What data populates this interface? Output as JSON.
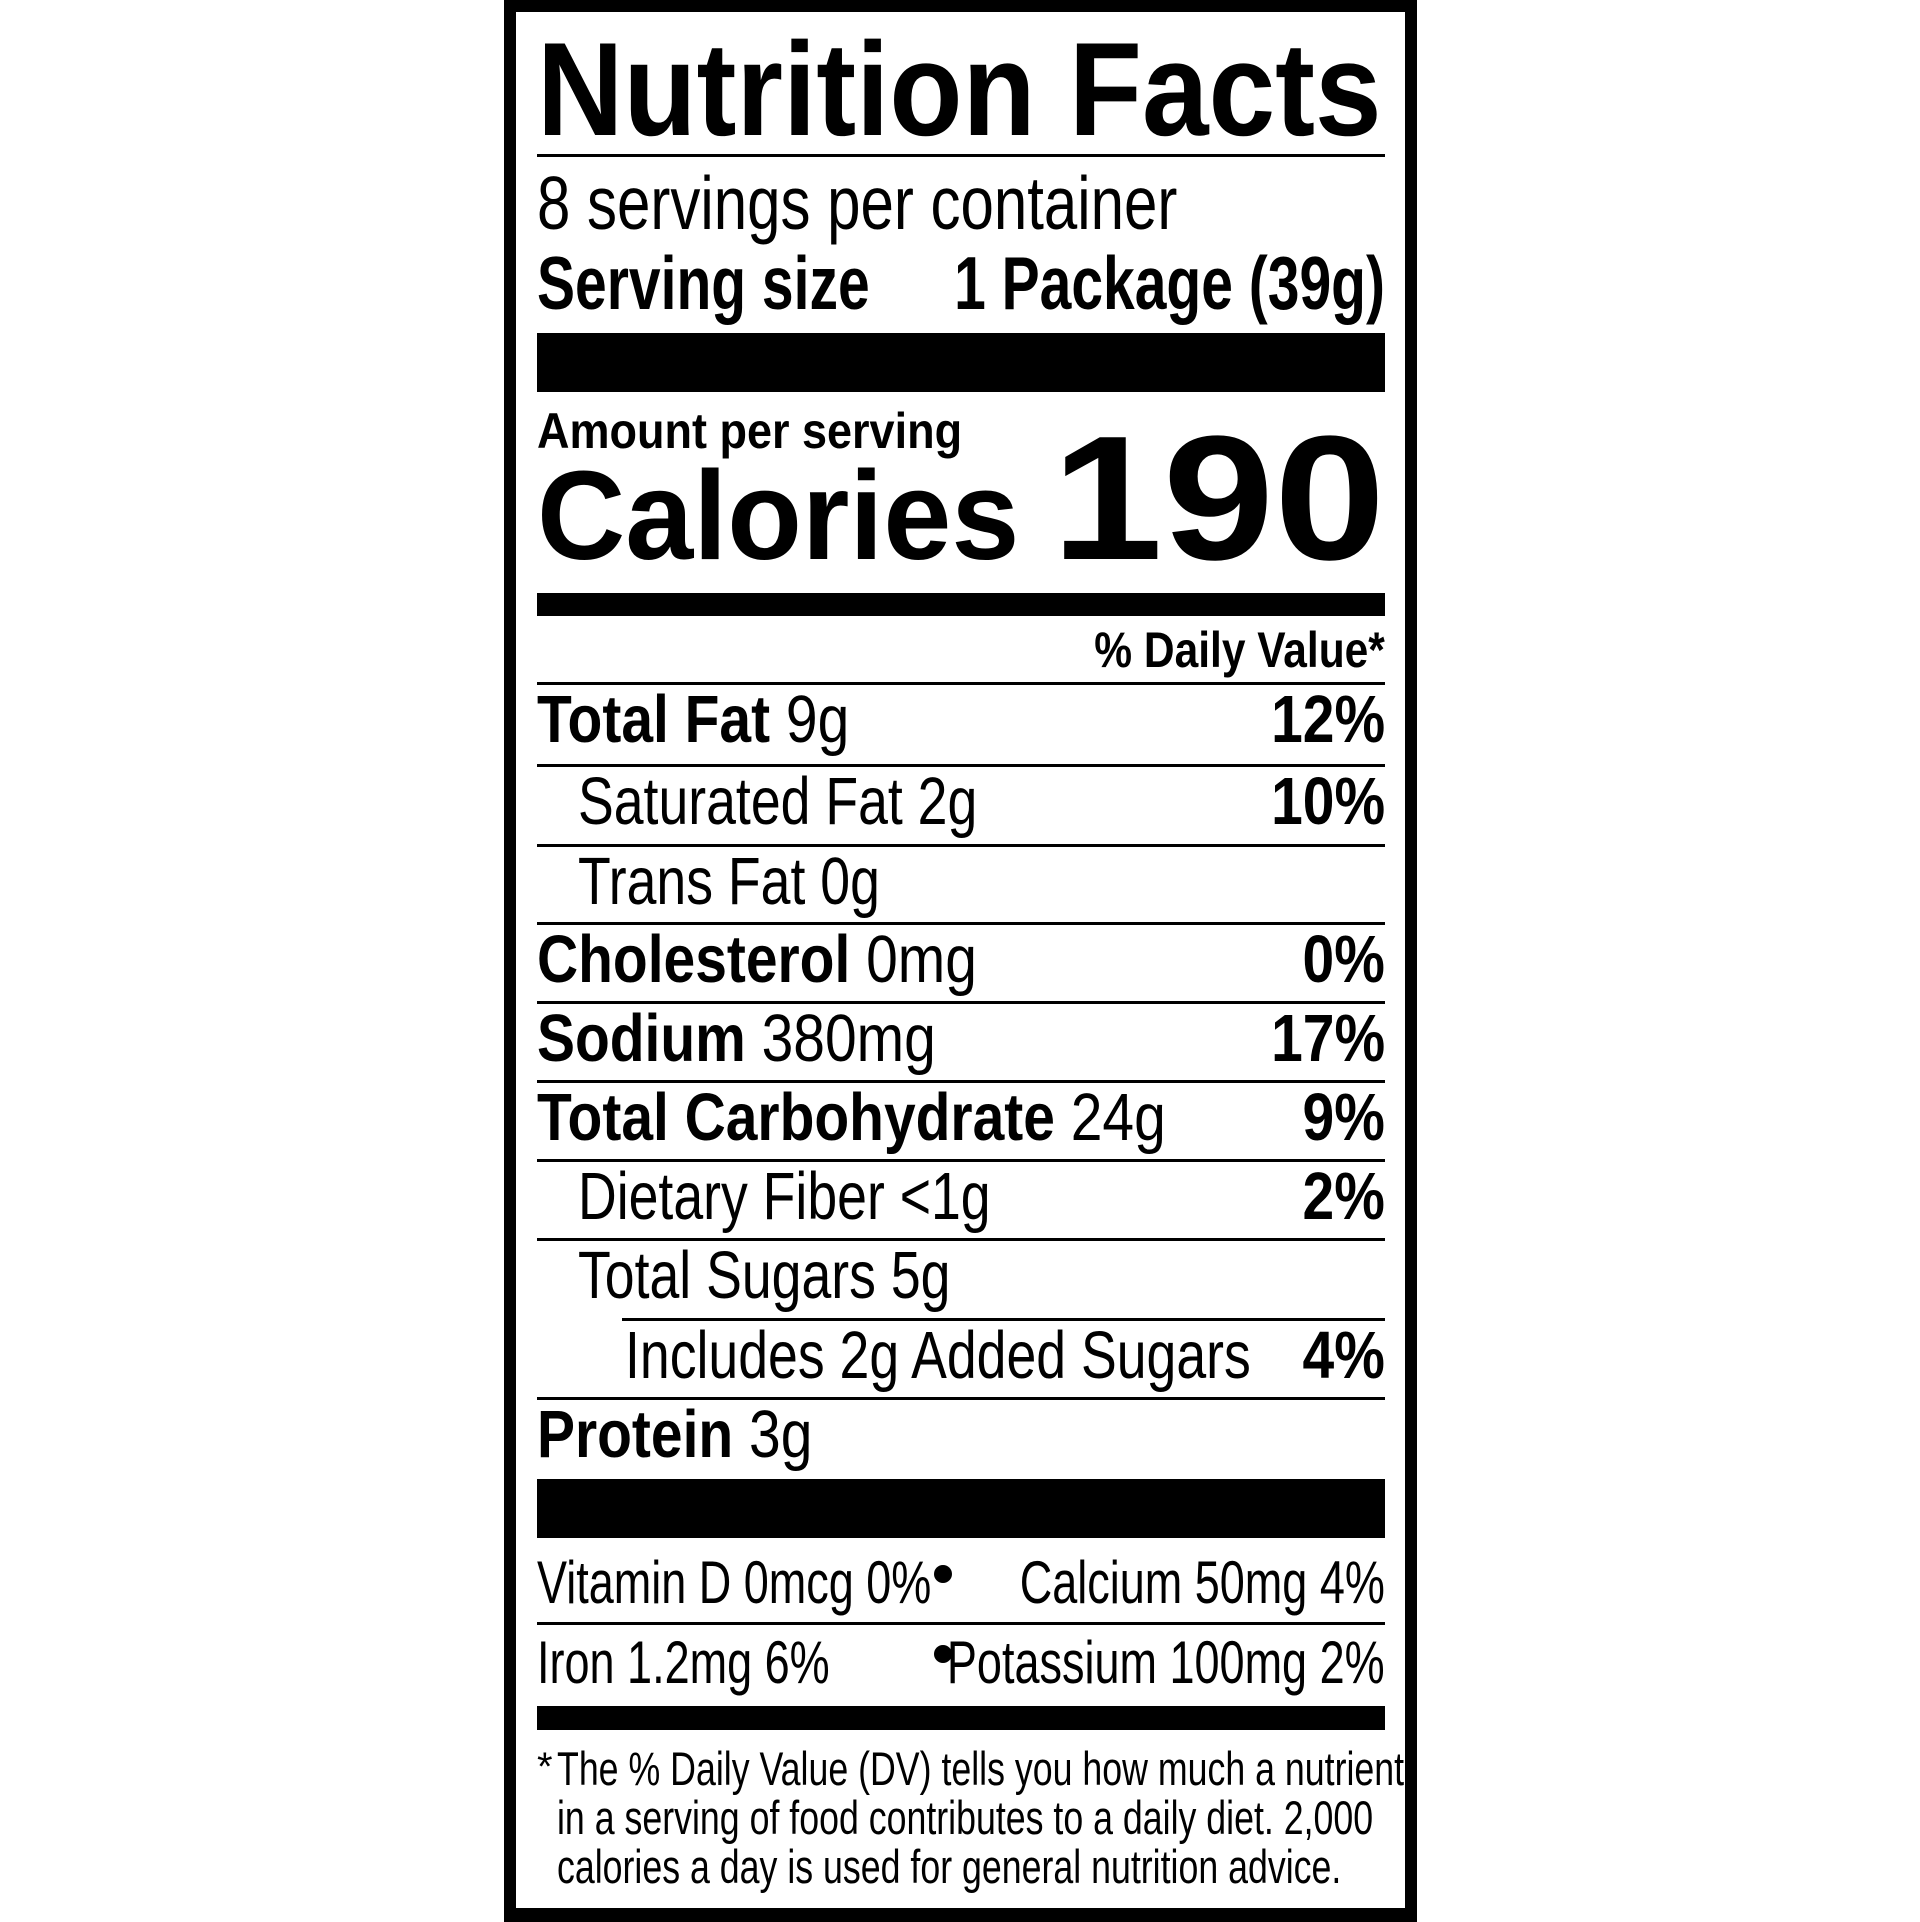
{
  "title": "Nutrition Facts",
  "servings_per_container": "8 servings per container",
  "serving_size": {
    "label": "Serving size",
    "value": "1 Package (39g)"
  },
  "amount_per_serving": "Amount per serving",
  "calories": {
    "label": "Calories",
    "value": "190"
  },
  "daily_value_header": "% Daily Value*",
  "nutrients": [
    {
      "name": "Total Fat",
      "amount": "9g",
      "dv": "12%"
    },
    {
      "name": "Saturated Fat",
      "amount": "2g",
      "dv": "10%"
    },
    {
      "name": "Trans Fat",
      "amount": "0g",
      "dv": ""
    },
    {
      "name": "Cholesterol",
      "amount": "0mg",
      "dv": "0%"
    },
    {
      "name": "Sodium",
      "amount": "380mg",
      "dv": "17%"
    },
    {
      "name": "Total Carbohydrate",
      "amount": "24g",
      "dv": "9%"
    },
    {
      "name": "Dietary Fiber",
      "amount": "<1g",
      "dv": "2%"
    },
    {
      "name": "Total Sugars",
      "amount": "5g",
      "dv": ""
    },
    {
      "name": "Includes 2g Added Sugars",
      "amount": "",
      "dv": "4%"
    },
    {
      "name": "Protein",
      "amount": "3g",
      "dv": ""
    }
  ],
  "micronutrients": [
    {
      "text": "Vitamin D 0mcg 0%"
    },
    {
      "text": "Calcium 50mg 4%"
    },
    {
      "text": "Iron 1.2mg 6%"
    },
    {
      "text": "Potassium 100mg 2%"
    }
  ],
  "footnote": {
    "asterisk": "*",
    "lines": [
      "The % Daily Value (DV) tells you how much a nutrient",
      "in a serving of food contributes to a daily diet. 2,000",
      "calories a day is used for general nutrition advice."
    ]
  }
}
